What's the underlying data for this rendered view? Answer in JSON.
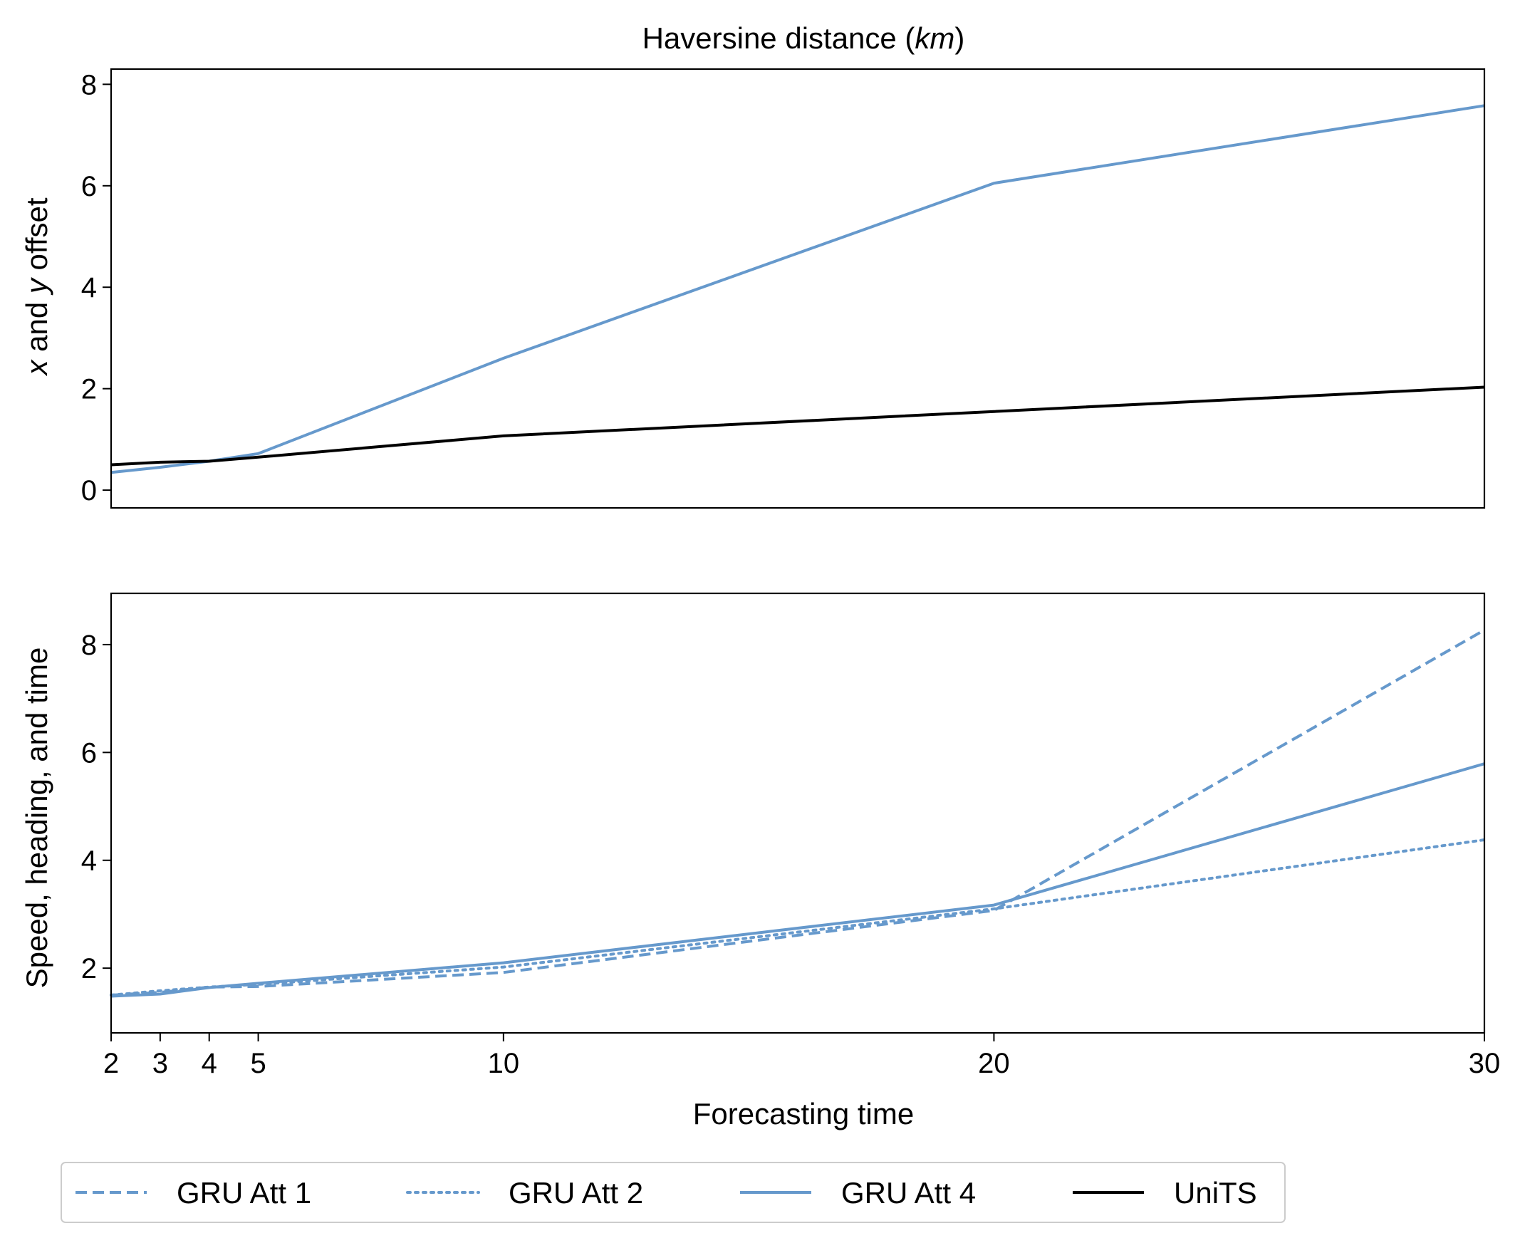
{
  "chart_data": [
    {
      "type": "line",
      "title": "Haversine distance (km)",
      "title_parts": {
        "prefix": "Haversine distance (",
        "unit": "km",
        "suffix": ")"
      },
      "xlabel": "",
      "ylabel": "x and y offset",
      "ylabel_parts": {
        "v1": "x",
        "mid": " and ",
        "v2": "y",
        "suffix": " offset"
      },
      "ylim": [
        -0.35,
        8.3
      ],
      "yticks": [
        0,
        2,
        4,
        6,
        8
      ],
      "x": [
        2,
        3,
        4,
        5,
        10,
        20,
        30
      ],
      "series": [
        {
          "name": "GRU Att 4",
          "style": "solid",
          "color": "#6699cc",
          "values": [
            0.35,
            0.45,
            0.57,
            0.72,
            2.6,
            6.05,
            7.58
          ]
        },
        {
          "name": "UniTS",
          "style": "solid",
          "color": "#000000",
          "values": [
            0.5,
            0.55,
            0.57,
            0.65,
            1.07,
            1.55,
            2.03
          ]
        }
      ]
    },
    {
      "type": "line",
      "title": "",
      "xlabel": "Forecasting time",
      "ylabel": "Speed, heading, and time",
      "xlim": [
        2,
        30
      ],
      "xticks": [
        2,
        3,
        4,
        5,
        10,
        20,
        30
      ],
      "ylim": [
        0.8,
        8.95
      ],
      "yticks": [
        2,
        4,
        6,
        8
      ],
      "x": [
        2,
        3,
        4,
        5,
        10,
        20,
        30
      ],
      "series": [
        {
          "name": "GRU Att 1",
          "style": "dashed",
          "color": "#6699cc",
          "values": [
            1.5,
            1.55,
            1.65,
            1.66,
            1.92,
            3.07,
            8.27
          ]
        },
        {
          "name": "GRU Att 2",
          "style": "dotted",
          "color": "#6699cc",
          "values": [
            1.5,
            1.58,
            1.65,
            1.7,
            2.02,
            3.1,
            4.38
          ]
        },
        {
          "name": "GRU Att 4",
          "style": "solid",
          "color": "#6699cc",
          "values": [
            1.48,
            1.52,
            1.64,
            1.72,
            2.1,
            3.17,
            5.79
          ]
        }
      ]
    }
  ],
  "legend": {
    "position": "bottom-center",
    "items": [
      {
        "label": "GRU Att 1",
        "style": "dashed",
        "color": "#6699cc"
      },
      {
        "label": "GRU Att 2",
        "style": "dotted",
        "color": "#6699cc"
      },
      {
        "label": "GRU Att 4",
        "style": "solid",
        "color": "#6699cc"
      },
      {
        "label": "UniTS",
        "style": "solid",
        "color": "#000000"
      }
    ]
  }
}
